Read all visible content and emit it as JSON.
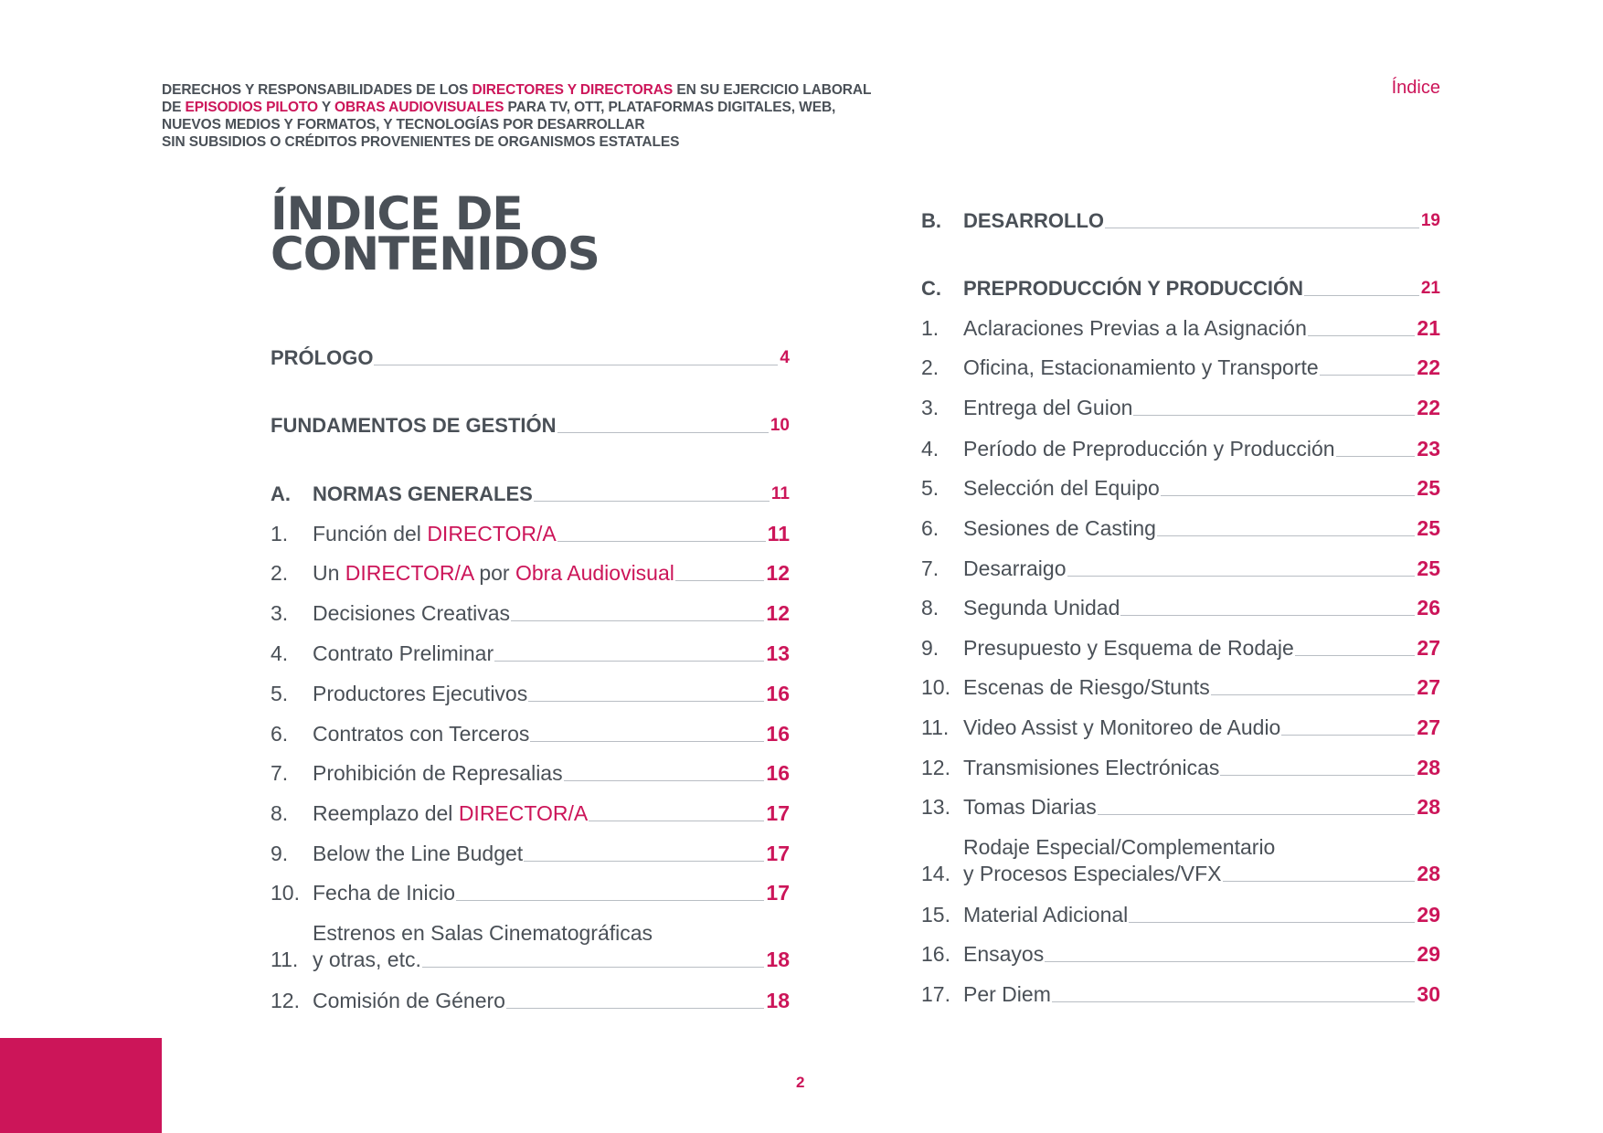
{
  "header": {
    "lines": [
      [
        {
          "t": "DERECHOS Y RESPONSABILIDADES DE LOS ",
          "h": false
        },
        {
          "t": "DIRECTORES Y DIRECTORAS",
          "h": true
        },
        {
          "t": " EN SU EJERCICIO LABORAL",
          "h": false
        }
      ],
      [
        {
          "t": "DE ",
          "h": false
        },
        {
          "t": "EPISODIOS PILOTO",
          "h": true
        },
        {
          "t": " Y ",
          "h": false
        },
        {
          "t": "OBRAS AUDIOVISUALES",
          "h": true
        },
        {
          "t": " PARA TV, OTT, PLATAFORMAS DIGITALES, WEB,",
          "h": false
        }
      ],
      [
        {
          "t": "NUEVOS MEDIOS Y FORMATOS, Y TECNOLOGÍAS POR DESARROLLAR",
          "h": false
        }
      ],
      [
        {
          "t": "SIN SUBSIDIOS O CRÉDITOS PROVENIENTES DE ORGANISMOS ESTATALES",
          "h": false
        }
      ]
    ],
    "index_link": "Índice"
  },
  "title": {
    "line1": "ÍNDICE DE",
    "line2": "CONTENIDOS"
  },
  "left": [
    {
      "num": "",
      "parts": [
        {
          "t": "PRÓLOGO",
          "h": false
        }
      ],
      "page": "4",
      "head": true
    },
    {
      "num": "",
      "parts": [
        {
          "t": "FUNDAMENTOS DE GESTIÓN",
          "h": false
        }
      ],
      "page": "10",
      "head": true
    },
    {
      "num": "A.",
      "parts": [
        {
          "t": "NORMAS GENERALES",
          "h": false
        }
      ],
      "page": "11",
      "head": true
    },
    {
      "num": "1.",
      "parts": [
        {
          "t": "Función del ",
          "h": false
        },
        {
          "t": "DIRECTOR/A",
          "h": true
        }
      ],
      "page": "11"
    },
    {
      "num": "2.",
      "parts": [
        {
          "t": "Un ",
          "h": false
        },
        {
          "t": "DIRECTOR/A",
          "h": true
        },
        {
          "t": " por ",
          "h": false
        },
        {
          "t": "Obra Audiovisual",
          "h": true
        }
      ],
      "page": "12"
    },
    {
      "num": "3.",
      "parts": [
        {
          "t": "Decisiones Creativas",
          "h": false
        }
      ],
      "page": "12"
    },
    {
      "num": "4.",
      "parts": [
        {
          "t": "Contrato Preliminar",
          "h": false
        }
      ],
      "page": "13"
    },
    {
      "num": "5.",
      "parts": [
        {
          "t": "Productores Ejecutivos",
          "h": false
        }
      ],
      "page": "16"
    },
    {
      "num": "6.",
      "parts": [
        {
          "t": "Contratos con Terceros",
          "h": false
        }
      ],
      "page": "16"
    },
    {
      "num": "7.",
      "parts": [
        {
          "t": "Prohibición de Represalias",
          "h": false
        }
      ],
      "page": "16"
    },
    {
      "num": "8.",
      "parts": [
        {
          "t": "Reemplazo del ",
          "h": false
        },
        {
          "t": "DIRECTOR/A",
          "h": true
        }
      ],
      "page": "17"
    },
    {
      "num": "9.",
      "parts": [
        {
          "t": "Below the Line Budget",
          "h": false
        }
      ],
      "page": "17"
    },
    {
      "num": "10.",
      "parts": [
        {
          "t": "Fecha de Inicio",
          "h": false
        }
      ],
      "page": "17"
    },
    {
      "num": "11.",
      "parts": [
        {
          "t": "Estrenos en Salas Cinematográficas",
          "h": false
        }
      ],
      "line2": "y otras, etc.",
      "page": "18"
    },
    {
      "num": "12.",
      "parts": [
        {
          "t": "Comisión de Género",
          "h": false
        }
      ],
      "page": "18"
    }
  ],
  "right": [
    {
      "num": "B.",
      "parts": [
        {
          "t": "DESARROLLO",
          "h": false
        }
      ],
      "page": "19",
      "head": true
    },
    {
      "num": "C.",
      "parts": [
        {
          "t": "PREPRODUCCIÓN Y PRODUCCIÓN",
          "h": false
        }
      ],
      "page": "21",
      "head": true
    },
    {
      "num": "1.",
      "parts": [
        {
          "t": "Aclaraciones Previas a la Asignación",
          "h": false
        }
      ],
      "page": "21"
    },
    {
      "num": "2.",
      "parts": [
        {
          "t": "Oficina, Estacionamiento y Transporte",
          "h": false
        }
      ],
      "page": "22"
    },
    {
      "num": "3.",
      "parts": [
        {
          "t": "Entrega del Guion",
          "h": false
        }
      ],
      "page": "22"
    },
    {
      "num": "4.",
      "parts": [
        {
          "t": "Período de Preproducción y Producción",
          "h": false
        }
      ],
      "page": "23"
    },
    {
      "num": "5.",
      "parts": [
        {
          "t": "Selección del Equipo",
          "h": false
        }
      ],
      "page": "25"
    },
    {
      "num": "6.",
      "parts": [
        {
          "t": "Sesiones de Casting",
          "h": false
        }
      ],
      "page": "25"
    },
    {
      "num": "7.",
      "parts": [
        {
          "t": "Desarraigo",
          "h": false
        }
      ],
      "page": "25"
    },
    {
      "num": "8.",
      "parts": [
        {
          "t": "Segunda Unidad",
          "h": false
        }
      ],
      "page": "26"
    },
    {
      "num": "9.",
      "parts": [
        {
          "t": "Presupuesto y Esquema de Rodaje",
          "h": false
        }
      ],
      "page": "27"
    },
    {
      "num": "10.",
      "parts": [
        {
          "t": "Escenas de Riesgo/Stunts",
          "h": false
        }
      ],
      "page": "27"
    },
    {
      "num": "11.",
      "parts": [
        {
          "t": "Video Assist y Monitoreo de Audio",
          "h": false
        }
      ],
      "page": "27"
    },
    {
      "num": "12.",
      "parts": [
        {
          "t": "Transmisiones Electrónicas",
          "h": false
        }
      ],
      "page": "28"
    },
    {
      "num": "13.",
      "parts": [
        {
          "t": "Tomas Diarias",
          "h": false
        }
      ],
      "page": "28"
    },
    {
      "num": "14.",
      "parts": [
        {
          "t": "Rodaje Especial/Complementario",
          "h": false
        }
      ],
      "line2": "y Procesos Especiales/VFX",
      "page": "28"
    },
    {
      "num": "15.",
      "parts": [
        {
          "t": "Material Adicional",
          "h": false
        }
      ],
      "page": "29"
    },
    {
      "num": "16.",
      "parts": [
        {
          "t": "Ensayos",
          "h": false
        }
      ],
      "page": "29"
    },
    {
      "num": "17.",
      "parts": [
        {
          "t": "Per Diem",
          "h": false
        }
      ],
      "page": "30"
    }
  ],
  "footer": {
    "page_number": "2"
  },
  "colors": {
    "accent": "#cc1559",
    "text": "#4a5057",
    "leader": "#b9bec4"
  }
}
